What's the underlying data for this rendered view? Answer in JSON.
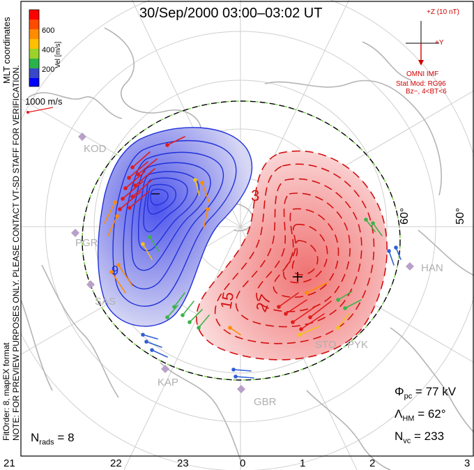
{
  "title": "30/Sep/2000 03:00–03:02 UT",
  "colorbar": {
    "title": "Vel [m/s]",
    "ticks": [
      "600",
      "400",
      "200"
    ],
    "colors": [
      "#ff0000",
      "#ff6a00",
      "#ffb000",
      "#9bd22b",
      "#2bb34a",
      "#2f8fb0",
      "#3848c8",
      "#0000ff"
    ]
  },
  "coord_label": "MLT coordinates",
  "ref_vector": "1000 m/s",
  "preview_note": "NOTE: FOR PREVIEW PURPOSES ONLY. PLEASE CONTACT VT-SD STAFF FOR VERIFICATION.",
  "fit_note": "FitOrder: 8, mapEX format",
  "imf": {
    "scale": "+Z (10 nT)",
    "y_axis": "+Y",
    "source": "OMNI IMF",
    "model_line1": "Stat Mod: RG96",
    "model_line2": "Bz−, 4<BT<6"
  },
  "stats": {
    "phi_pc": "77 kV",
    "lambda_hm": "62°",
    "n_vc": "233",
    "n_rads": "8"
  },
  "mlt_ticks": [
    "21",
    "22",
    "23",
    "0",
    "1",
    "2",
    "3"
  ],
  "lat_labels": [
    "60°",
    "50°"
  ],
  "contour_labels": [
    "3",
    "15",
    "27",
    "9"
  ],
  "stations": [
    "KOD",
    "PGR",
    "SAS",
    "KAP",
    "GBR",
    "STO",
    "PYK",
    "HAN"
  ],
  "colors": {
    "negative": "#1f2fe0",
    "positive": "#d21010",
    "hm_boundary": "#6fcf3a"
  }
}
